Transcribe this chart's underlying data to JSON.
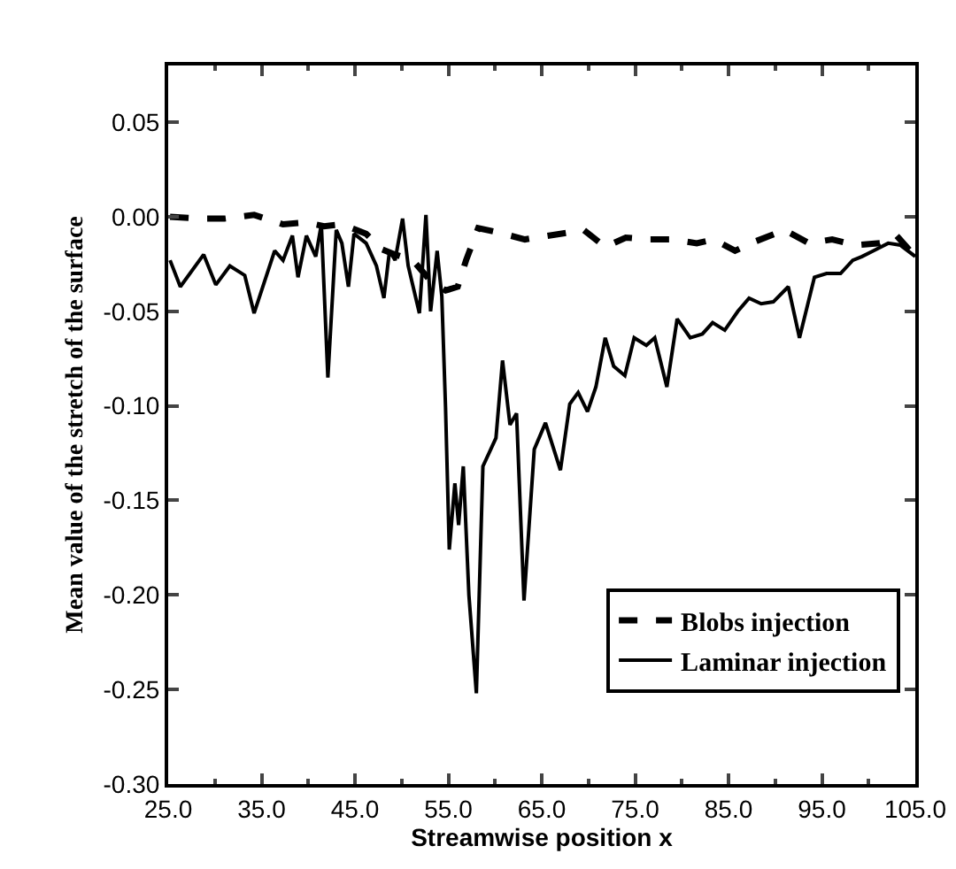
{
  "chart_data": {
    "type": "line",
    "xlabel": "Streamwise position x",
    "ylabel": "Mean value of the stretch of the surface",
    "xlim": [
      25,
      105
    ],
    "ylim": [
      -0.3,
      0.08
    ],
    "xticks": [
      {
        "value": 25,
        "label": "25.0"
      },
      {
        "value": 35,
        "label": "35.0"
      },
      {
        "value": 45,
        "label": "45.0"
      },
      {
        "value": 55,
        "label": "55.0"
      },
      {
        "value": 65,
        "label": "65.0"
      },
      {
        "value": 75,
        "label": "75.0"
      },
      {
        "value": 85,
        "label": "85.0"
      },
      {
        "value": 95,
        "label": "95.0"
      },
      {
        "value": 105,
        "label": "105.0"
      }
    ],
    "yticks": [
      {
        "value": -0.3,
        "label": "-0.30"
      },
      {
        "value": -0.25,
        "label": "-0.25"
      },
      {
        "value": -0.2,
        "label": "-0.20"
      },
      {
        "value": -0.15,
        "label": "-0.15"
      },
      {
        "value": -0.1,
        "label": "-0.10"
      },
      {
        "value": -0.05,
        "label": "-0.05"
      },
      {
        "value": 0,
        "label": "0.00"
      },
      {
        "value": 0.05,
        "label": "0.05"
      }
    ],
    "grid": false,
    "legend": "bottom right",
    "marker": "none",
    "series": [
      {
        "name": "Blobs injection",
        "color": "#000000",
        "line_style": "dashed",
        "x": [
          25.2,
          28.5,
          31.0,
          34.2,
          37.3,
          39.8,
          41.7,
          43.6,
          46.2,
          47.8,
          49.3,
          51.2,
          53.1,
          54.7,
          56.0,
          56.9,
          58.2,
          60.1,
          63.2,
          67.0,
          69.5,
          71.8,
          74.0,
          76.5,
          79.0,
          81.6,
          83.4,
          85.7,
          87.9,
          91.0,
          93.6,
          96.1,
          98.6,
          101.2,
          103.0,
          105.0
        ],
        "values": [
          0.0,
          -0.001,
          -0.001,
          0.001,
          -0.004,
          -0.003,
          -0.005,
          -0.004,
          -0.009,
          -0.017,
          -0.02,
          -0.023,
          -0.034,
          -0.039,
          -0.037,
          -0.023,
          -0.006,
          -0.008,
          -0.012,
          -0.009,
          -0.007,
          -0.016,
          -0.011,
          -0.012,
          -0.012,
          -0.014,
          -0.012,
          -0.018,
          -0.013,
          -0.007,
          -0.014,
          -0.012,
          -0.015,
          -0.014,
          -0.01,
          -0.021
        ]
      },
      {
        "name": "Laminar injection",
        "color": "#000000",
        "line_style": "solid",
        "x": [
          25.2,
          26.3,
          28.8,
          30.1,
          31.6,
          33.2,
          34.2,
          36.4,
          37.3,
          38.3,
          38.9,
          39.8,
          40.8,
          41.4,
          42.1,
          43.0,
          43.6,
          44.3,
          44.9,
          46.2,
          47.3,
          48.1,
          48.7,
          49.3,
          50.1,
          50.7,
          51.9,
          52.6,
          53.1,
          53.8,
          54.3,
          54.7,
          55.1,
          55.7,
          56.1,
          56.6,
          57.2,
          58.0,
          58.7,
          60.1,
          60.8,
          61.6,
          62.3,
          63.1,
          64.2,
          65.4,
          67.0,
          68.0,
          68.9,
          69.9,
          70.8,
          71.8,
          72.7,
          73.9,
          74.9,
          76.2,
          77.1,
          78.4,
          79.5,
          80.9,
          82.2,
          83.3,
          84.6,
          86.0,
          87.2,
          88.5,
          89.8,
          91.4,
          92.6,
          94.2,
          95.5,
          97.0,
          98.3,
          99.3,
          100.5,
          102.1,
          103.4,
          105.0
        ],
        "values": [
          -0.023,
          -0.037,
          -0.02,
          -0.036,
          -0.026,
          -0.031,
          -0.051,
          -0.018,
          -0.023,
          -0.01,
          -0.032,
          -0.01,
          -0.021,
          -0.004,
          -0.085,
          -0.007,
          -0.014,
          -0.037,
          -0.009,
          -0.014,
          -0.026,
          -0.043,
          -0.018,
          -0.023,
          -0.001,
          -0.026,
          -0.051,
          0.001,
          -0.05,
          -0.018,
          -0.042,
          -0.101,
          -0.176,
          -0.141,
          -0.163,
          -0.132,
          -0.2,
          -0.252,
          -0.132,
          -0.117,
          -0.076,
          -0.11,
          -0.104,
          -0.203,
          -0.123,
          -0.109,
          -0.134,
          -0.099,
          -0.093,
          -0.103,
          -0.09,
          -0.064,
          -0.079,
          -0.084,
          -0.064,
          -0.068,
          -0.064,
          -0.09,
          -0.054,
          -0.064,
          -0.062,
          -0.056,
          -0.06,
          -0.05,
          -0.043,
          -0.046,
          -0.045,
          -0.037,
          -0.064,
          -0.032,
          -0.03,
          -0.03,
          -0.023,
          -0.021,
          -0.018,
          -0.014,
          -0.015,
          -0.021
        ]
      }
    ]
  }
}
